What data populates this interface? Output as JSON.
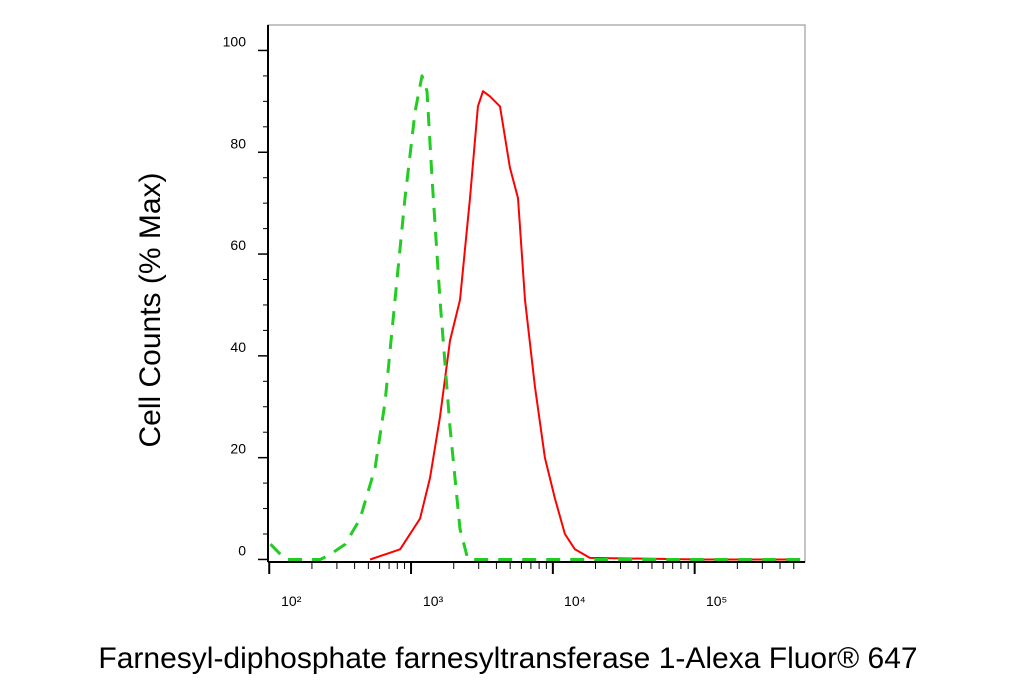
{
  "chart_data": {
    "type": "line",
    "xlabel": "Farnesyl-diphosphate farnesyltransferase 1-Alexa Fluor® 647",
    "ylabel": "Cell Counts (% Max)",
    "xscale": "log",
    "xlim": [
      98,
      600000
    ],
    "ylim": [
      -0.5,
      105
    ],
    "xticks": [
      {
        "value": 100,
        "label": "10²"
      },
      {
        "value": 1000,
        "label": "10³"
      },
      {
        "value": 10000,
        "label": "10⁴"
      },
      {
        "value": 100000,
        "label": "10⁵"
      }
    ],
    "xminorticks": [
      200,
      300,
      400,
      500,
      600,
      700,
      800,
      900,
      2000,
      3000,
      4000,
      5000,
      6000,
      7000,
      8000,
      9000,
      20000,
      30000,
      40000,
      50000,
      60000,
      70000,
      80000,
      90000,
      200000,
      300000,
      400000,
      500000
    ],
    "yticks": [
      0,
      20,
      40,
      60,
      80,
      100
    ],
    "yminorticks": [
      5,
      10,
      15,
      25,
      30,
      35,
      45,
      50,
      55,
      65,
      70,
      75,
      85,
      90,
      95
    ],
    "series": [
      {
        "color": "#ff0000",
        "line_style": "solid",
        "x": [
          514,
          837,
          1157,
          1361,
          1601,
          1883,
          2215,
          2603,
          2963,
          3215,
          3600,
          4236,
          4980,
          5675,
          6358,
          7470,
          8790,
          10330,
          12160,
          14300,
          18240,
          108400,
          548000
        ],
        "values": [
          0,
          2,
          8,
          16,
          28,
          43,
          51,
          71,
          89,
          92,
          91,
          89,
          77,
          71,
          51,
          34,
          20,
          12,
          5,
          2,
          0.3,
          0,
          0
        ]
      },
      {
        "color": "#22cc22",
        "line_style": "dashed",
        "x": [
          102,
          130,
          229,
          269,
          343,
          437,
          558,
          656,
          771,
          907,
          1068,
          1195,
          1296,
          1406,
          1601,
          1883,
          2215,
          2519,
          11190,
          590000
        ],
        "values": [
          3,
          0,
          0,
          1,
          3,
          8,
          18,
          31,
          51,
          71,
          88,
          95,
          92,
          75,
          51,
          26,
          6,
          0,
          0,
          0
        ]
      }
    ]
  }
}
